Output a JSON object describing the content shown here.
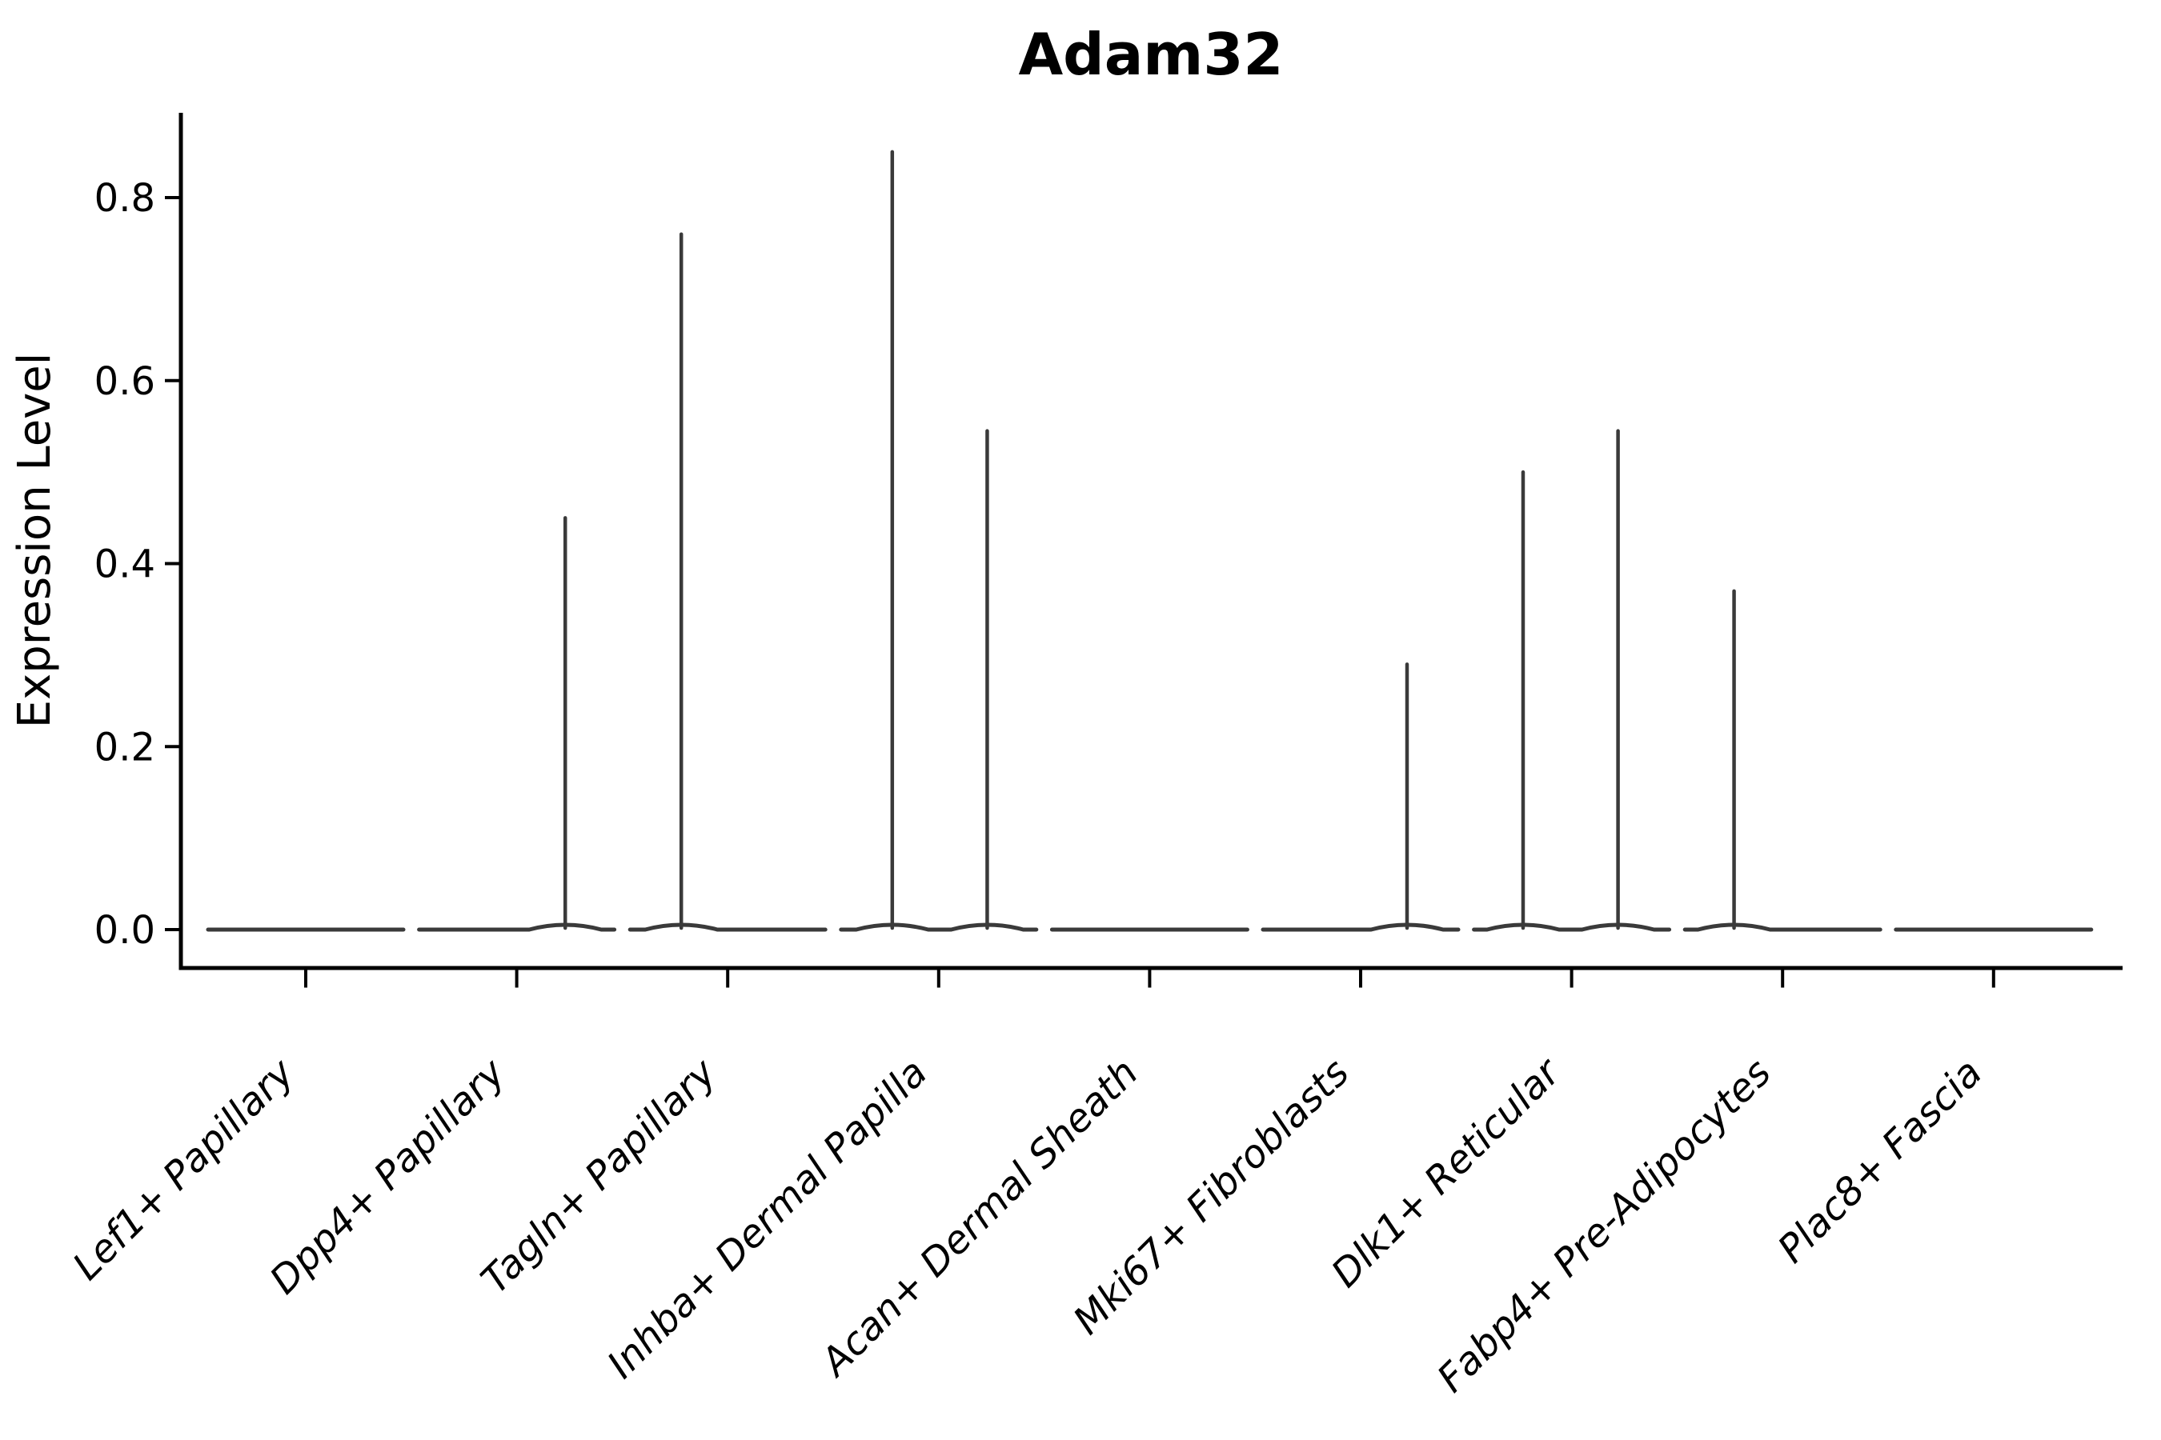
{
  "title": "Adam32",
  "ylabel": "Expression Level",
  "colors": {
    "violin_stroke": "#3a3a3a",
    "axis": "#000000",
    "text": "#000000",
    "background": "#ffffff"
  },
  "chart_data": {
    "type": "violin",
    "title": "Adam32",
    "xlabel": "",
    "ylabel": "Expression Level",
    "ylim": [
      -0.04,
      0.893
    ],
    "yticks": [
      0.0,
      0.2,
      0.4,
      0.6,
      0.8
    ],
    "ytick_labels": [
      "0.0",
      "0.2",
      "0.4",
      "0.6",
      "0.8"
    ],
    "grid": false,
    "legend": null,
    "categories": [
      "Lef1+ Papillary",
      "Dpp4+ Papillary",
      "Tagln+ Papillary",
      "Inhba+ Dermal Papilla",
      "Acan+ Dermal Sheath",
      "Mki67+ Fibroblasts",
      "Dlk1+ Reticular",
      "Fabp4+ Pre-Adipocytes",
      "Plac8+ Fascia"
    ],
    "series": [
      {
        "category": "Lef1+ Papillary",
        "baseline": 0.0,
        "max_expression": 0.0,
        "spikes": []
      },
      {
        "category": "Dpp4+ Papillary",
        "baseline": 0.0,
        "max_expression": 0.45,
        "spikes": [
          {
            "x_offset_frac": 0.23,
            "value": 0.45
          }
        ]
      },
      {
        "category": "Tagln+ Papillary",
        "baseline": 0.0,
        "max_expression": 0.76,
        "spikes": [
          {
            "x_offset_frac": -0.22,
            "value": 0.76
          }
        ]
      },
      {
        "category": "Inhba+ Dermal Papilla",
        "baseline": 0.0,
        "max_expression": 0.85,
        "spikes": [
          {
            "x_offset_frac": -0.22,
            "value": 0.85
          },
          {
            "x_offset_frac": 0.23,
            "value": 0.545
          }
        ]
      },
      {
        "category": "Acan+ Dermal Sheath",
        "baseline": 0.0,
        "max_expression": 0.0,
        "spikes": []
      },
      {
        "category": "Mki67+ Fibroblasts",
        "baseline": 0.0,
        "max_expression": 0.29,
        "spikes": [
          {
            "x_offset_frac": 0.22,
            "value": 0.29
          }
        ]
      },
      {
        "category": "Dlk1+ Reticular",
        "baseline": 0.0,
        "max_expression": 0.545,
        "spikes": [
          {
            "x_offset_frac": -0.23,
            "value": 0.5
          },
          {
            "x_offset_frac": 0.22,
            "value": 0.545
          }
        ]
      },
      {
        "category": "Fabp4+ Pre-Adipocytes",
        "baseline": 0.0,
        "max_expression": 0.37,
        "spikes": [
          {
            "x_offset_frac": -0.23,
            "value": 0.37
          }
        ]
      },
      {
        "category": "Plac8+ Fascia",
        "baseline": 0.0,
        "max_expression": 0.0,
        "spikes": []
      }
    ]
  }
}
